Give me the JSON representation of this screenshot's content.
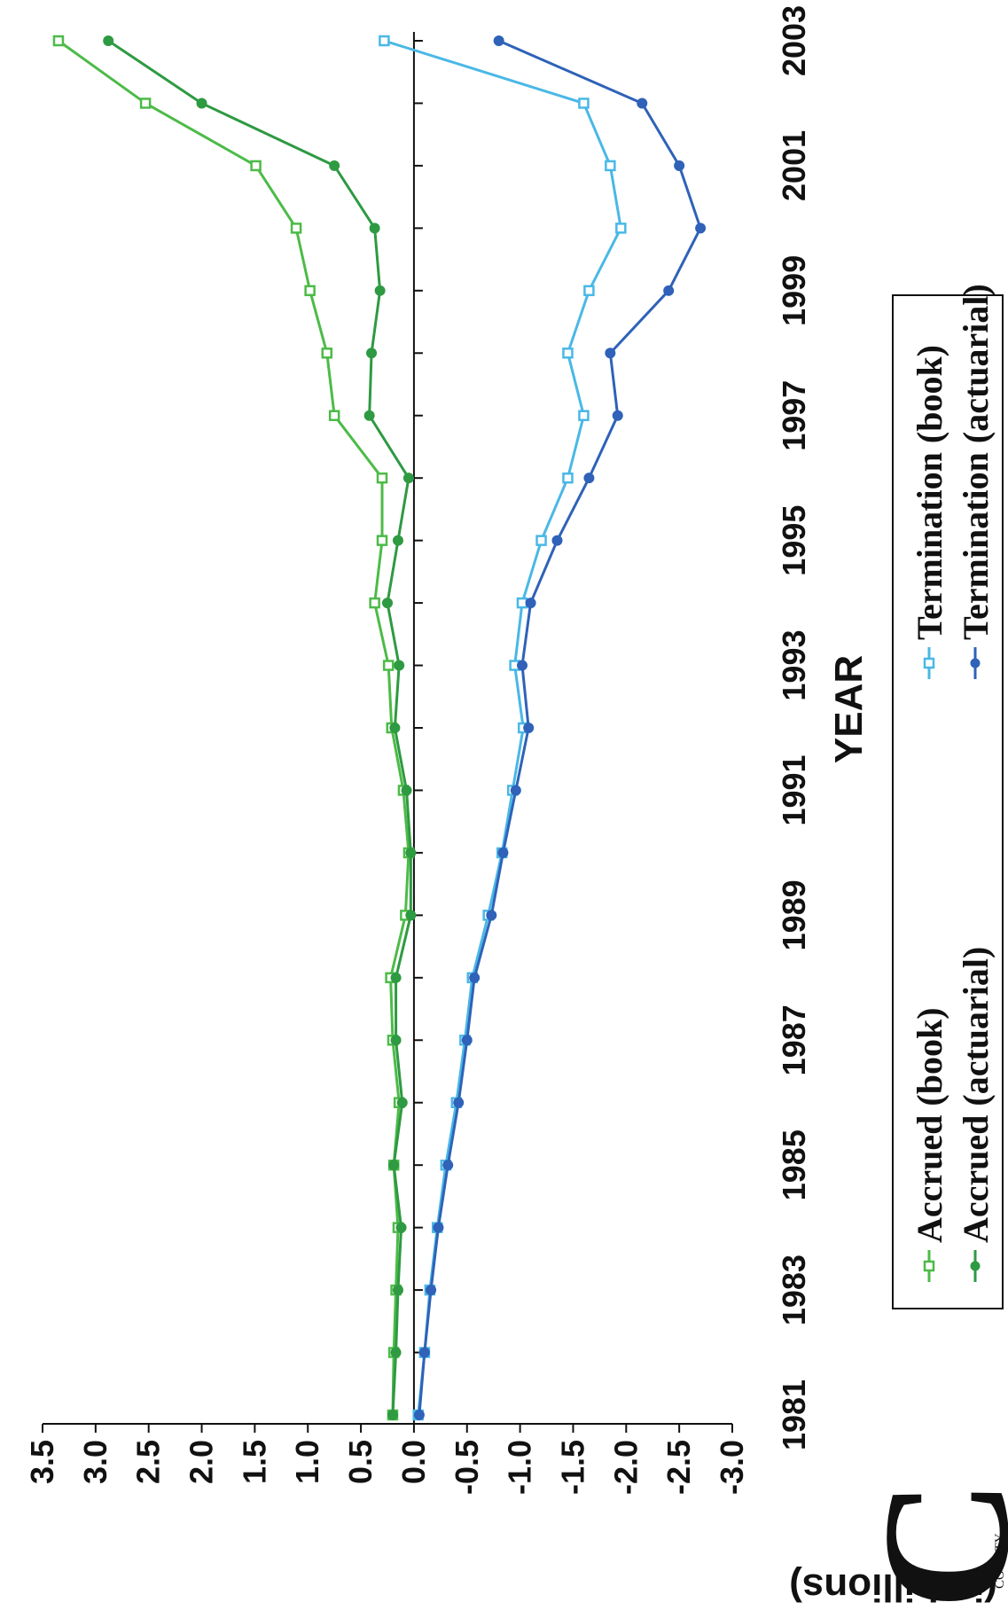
{
  "chart_data": {
    "type": "line",
    "title": "",
    "xlabel": "YEAR",
    "ylabel": "DOLLARS (in billions)",
    "x": [
      1981,
      1982,
      1983,
      1984,
      1985,
      1986,
      1987,
      1988,
      1989,
      1990,
      1991,
      1992,
      1993,
      1994,
      1995,
      1996,
      1997,
      1998,
      1999,
      2000,
      2001,
      2002,
      2003
    ],
    "x_ticks": [
      "1981",
      "1983",
      "1985",
      "1987",
      "1989",
      "1991",
      "1993",
      "1995",
      "1997",
      "1999",
      "2001",
      "2003"
    ],
    "ylim": [
      -3.0,
      3.5
    ],
    "y_ticks": [
      "3.5",
      "3.0",
      "2.5",
      "2.0",
      "1.5",
      "1.0",
      "0.5",
      "0.0",
      "-0.5",
      "-1.0",
      "-1.5",
      "-2.0",
      "-2.5",
      "-3.0"
    ],
    "grid": false,
    "legend_position": "bottom",
    "series": [
      {
        "name": "Accrued (book)",
        "color": "#4cbb47",
        "marker": "open-square",
        "values": [
          0.2,
          0.19,
          0.17,
          0.15,
          0.19,
          0.14,
          0.2,
          0.22,
          0.08,
          0.05,
          0.1,
          0.21,
          0.24,
          0.37,
          0.3,
          0.3,
          0.75,
          0.82,
          0.98,
          1.11,
          1.49,
          2.53,
          3.35
        ]
      },
      {
        "name": "Accrued (actuarial)",
        "color": "#2e9a42",
        "marker": "filled-circle",
        "values": [
          0.2,
          0.17,
          0.15,
          0.12,
          0.19,
          0.11,
          0.17,
          0.17,
          0.03,
          0.03,
          0.07,
          0.18,
          0.14,
          0.25,
          0.15,
          0.05,
          0.42,
          0.4,
          0.32,
          0.37,
          0.75,
          2.0,
          2.88
        ]
      },
      {
        "name": "Termination (book)",
        "color": "#49b8e6",
        "marker": "open-square",
        "values": [
          -0.04,
          -0.1,
          -0.15,
          -0.22,
          -0.3,
          -0.4,
          -0.48,
          -0.55,
          -0.7,
          -0.83,
          -0.93,
          -1.03,
          -0.95,
          -1.02,
          -1.2,
          -1.45,
          -1.6,
          -1.45,
          -1.65,
          -1.95,
          -1.85,
          -1.6,
          0.28
        ]
      },
      {
        "name": "Termination (actuarial)",
        "color": "#2f62b8",
        "marker": "filled-circle",
        "values": [
          -0.05,
          -0.1,
          -0.16,
          -0.23,
          -0.32,
          -0.42,
          -0.5,
          -0.57,
          -0.73,
          -0.84,
          -0.96,
          -1.08,
          -1.02,
          -1.1,
          -1.35,
          -1.65,
          -1.92,
          -1.85,
          -2.4,
          -2.7,
          -2.5,
          -2.15,
          -0.8
        ]
      }
    ]
  },
  "emblem": {
    "letter": "C",
    "caption": "COUNTY"
  }
}
